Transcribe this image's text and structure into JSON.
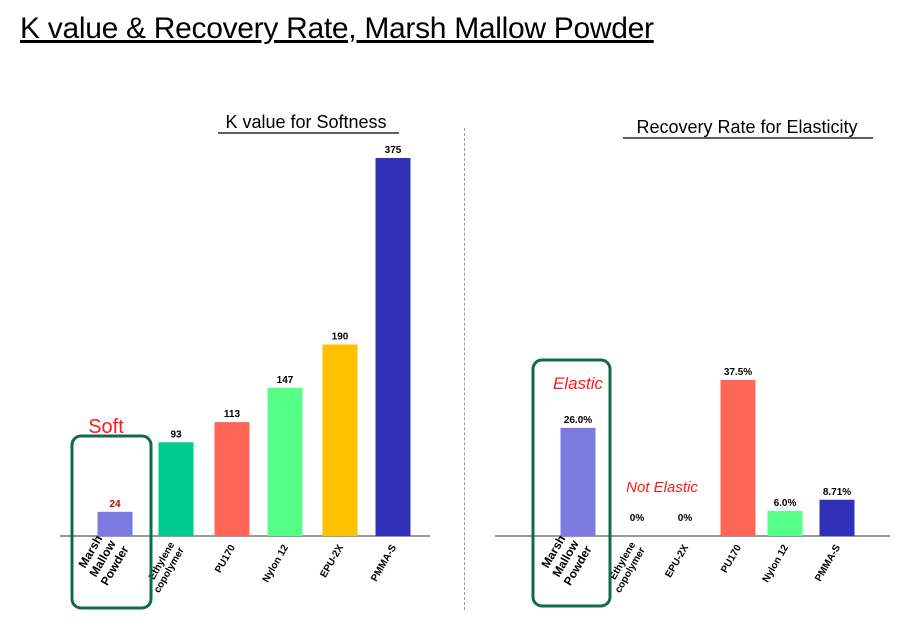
{
  "title": "K value & Recovery Rate, Marsh Mallow Powder",
  "colors": {
    "marsh_mallow": "#7b7bdf",
    "ethylene": "#00cc92",
    "pu170": "#ff6655",
    "nylon12": "#55ff88",
    "epu2x": "#ffc000",
    "pmmas": "#3030b8",
    "highlight_box": "#0f6b4f",
    "annotation_red": "#ff1a1a"
  },
  "chart_data": [
    {
      "type": "bar",
      "title": "K value  for Softness",
      "categories": [
        "Marsh Mallow Powder",
        "Ethylene copolymer",
        "PU170",
        "Nylon 12",
        "EPU-2X",
        "PMMA-S"
      ],
      "category_lines": [
        [
          "Marsh",
          "Mallow",
          "Powder"
        ],
        [
          "Ethylene",
          "copolymer"
        ],
        [
          "PU170"
        ],
        [
          "Nylon 12"
        ],
        [
          "EPU-2X"
        ],
        [
          "PMMA-S"
        ]
      ],
      "values": [
        24,
        93,
        113,
        147,
        190,
        375
      ],
      "value_labels": [
        "24",
        "93",
        "113",
        "147",
        "190",
        "375"
      ],
      "value_label_colors": [
        "#c00000",
        "#000000",
        "#000000",
        "#000000",
        "#000000",
        "#000000"
      ],
      "ylim": [
        0,
        375
      ],
      "grid": false,
      "annotations": [
        "Soft"
      ]
    },
    {
      "type": "bar",
      "title": "Recovery  Rate  for Elasticity",
      "categories": [
        "Marsh Mallow Powder",
        "Ethylene copolymer",
        "EPU-2X",
        "PU170",
        "Nylon 12",
        "PMMA-S"
      ],
      "category_lines": [
        [
          "Marsh",
          "Mallow",
          "Powder"
        ],
        [
          "Ethylene",
          "copolymer"
        ],
        [
          "EPU-2X"
        ],
        [
          "PU170"
        ],
        [
          "Nylon 12"
        ],
        [
          "PMMA-S"
        ]
      ],
      "values": [
        26.0,
        0,
        0,
        37.5,
        6.0,
        8.71
      ],
      "value_labels": [
        "26.0%",
        "0%",
        "0%",
        "37.5%",
        "6.0%",
        "8.71%"
      ],
      "value_label_colors": [
        "#000000",
        "#000000",
        "#000000",
        "#000000",
        "#000000",
        "#000000"
      ],
      "ylim": [
        0,
        37.5
      ],
      "grid": false,
      "annotations": [
        "Elastic",
        "Not Elastic"
      ]
    }
  ]
}
